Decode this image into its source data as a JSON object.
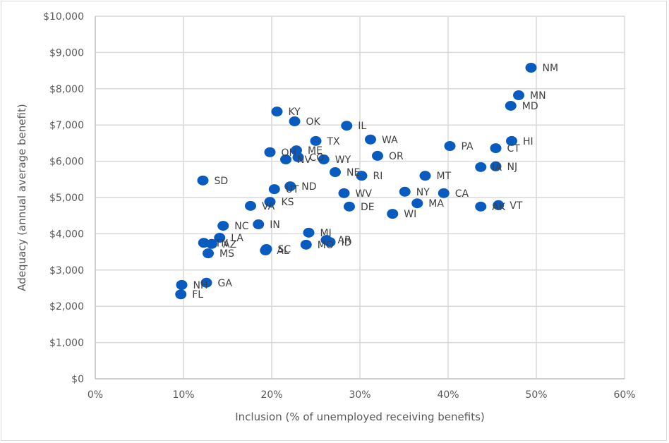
{
  "chart_data": {
    "type": "scatter",
    "title": "",
    "xlabel": "Inclusion (% of unemployed receiving benefits)",
    "ylabel": "Adequacy (annual average benefit)",
    "xlim": [
      0,
      60
    ],
    "ylim": [
      0,
      10000
    ],
    "x_ticks": [
      0,
      10,
      20,
      30,
      40,
      50,
      60
    ],
    "x_tick_labels": [
      "0%",
      "10%",
      "20%",
      "30%",
      "40%",
      "50%",
      "60%"
    ],
    "y_ticks": [
      0,
      1000,
      2000,
      3000,
      4000,
      5000,
      6000,
      7000,
      8000,
      9000,
      10000
    ],
    "y_tick_labels": [
      "$0",
      "$1,000",
      "$2,000",
      "$3,000",
      "$4,000",
      "$5,000",
      "$6,000",
      "$7,000",
      "$8,000",
      "$9,000",
      "$10,000"
    ],
    "grid": true,
    "legend": "none",
    "marker_color": "#0a5bbf",
    "points": [
      {
        "label": "NM",
        "x": 49.4,
        "y": 8580
      },
      {
        "label": "MN",
        "x": 48.0,
        "y": 7820
      },
      {
        "label": "MD",
        "x": 47.1,
        "y": 7530
      },
      {
        "label": "KY",
        "x": 20.6,
        "y": 7370
      },
      {
        "label": "OK",
        "x": 22.6,
        "y": 7100
      },
      {
        "label": "IL",
        "x": 28.5,
        "y": 6980
      },
      {
        "label": "WA",
        "x": 31.2,
        "y": 6600
      },
      {
        "label": "TX",
        "x": 25.0,
        "y": 6560
      },
      {
        "label": "HI",
        "x": 47.2,
        "y": 6560
      },
      {
        "label": "PA",
        "x": 40.2,
        "y": 6420
      },
      {
        "label": "CT",
        "x": 45.4,
        "y": 6360
      },
      {
        "label": "ME",
        "x": 22.8,
        "y": 6300
      },
      {
        "label": "OH",
        "x": 19.8,
        "y": 6250
      },
      {
        "label": "OR",
        "x": 32.0,
        "y": 6150
      },
      {
        "label": "NV",
        "x": 21.6,
        "y": 6050
      },
      {
        "label": "CO",
        "x": 23.0,
        "y": 6110
      },
      {
        "label": "WY",
        "x": 25.9,
        "y": 6050
      },
      {
        "label": "NJ",
        "x": 45.4,
        "y": 5860
      },
      {
        "label": "IA",
        "x": 43.7,
        "y": 5840
      },
      {
        "label": "NE",
        "x": 27.2,
        "y": 5700
      },
      {
        "label": "RI",
        "x": 30.2,
        "y": 5600
      },
      {
        "label": "MT",
        "x": 37.4,
        "y": 5600
      },
      {
        "label": "SD",
        "x": 12.2,
        "y": 5470
      },
      {
        "label": "ND",
        "x": 22.1,
        "y": 5310
      },
      {
        "label": "UT",
        "x": 20.3,
        "y": 5230
      },
      {
        "label": "NY",
        "x": 35.1,
        "y": 5160
      },
      {
        "label": "WV",
        "x": 28.2,
        "y": 5120
      },
      {
        "label": "CA",
        "x": 39.5,
        "y": 5120
      },
      {
        "label": "KS",
        "x": 19.8,
        "y": 4880
      },
      {
        "label": "MA",
        "x": 36.5,
        "y": 4840
      },
      {
        "label": "VT",
        "x": 45.7,
        "y": 4790
      },
      {
        "label": "VA",
        "x": 17.6,
        "y": 4770
      },
      {
        "label": "DE",
        "x": 28.8,
        "y": 4750
      },
      {
        "label": "AK",
        "x": 43.7,
        "y": 4750
      },
      {
        "label": "WI",
        "x": 33.7,
        "y": 4550
      },
      {
        "label": "IN",
        "x": 18.5,
        "y": 4260
      },
      {
        "label": "NC",
        "x": 14.5,
        "y": 4220
      },
      {
        "label": "MI",
        "x": 24.2,
        "y": 4030
      },
      {
        "label": "LA",
        "x": 14.1,
        "y": 3890
      },
      {
        "label": "AR",
        "x": 26.2,
        "y": 3830
      },
      {
        "label": "ID",
        "x": 26.6,
        "y": 3770
      },
      {
        "label": "TN",
        "x": 12.3,
        "y": 3750
      },
      {
        "label": "AZ",
        "x": 13.2,
        "y": 3720
      },
      {
        "label": "MO",
        "x": 23.9,
        "y": 3700
      },
      {
        "label": "SC",
        "x": 19.4,
        "y": 3580
      },
      {
        "label": "AL",
        "x": 19.3,
        "y": 3540
      },
      {
        "label": "MS",
        "x": 12.8,
        "y": 3460
      },
      {
        "label": "GA",
        "x": 12.6,
        "y": 2650
      },
      {
        "label": "NH",
        "x": 9.8,
        "y": 2590
      },
      {
        "label": "FL",
        "x": 9.7,
        "y": 2330
      }
    ]
  }
}
